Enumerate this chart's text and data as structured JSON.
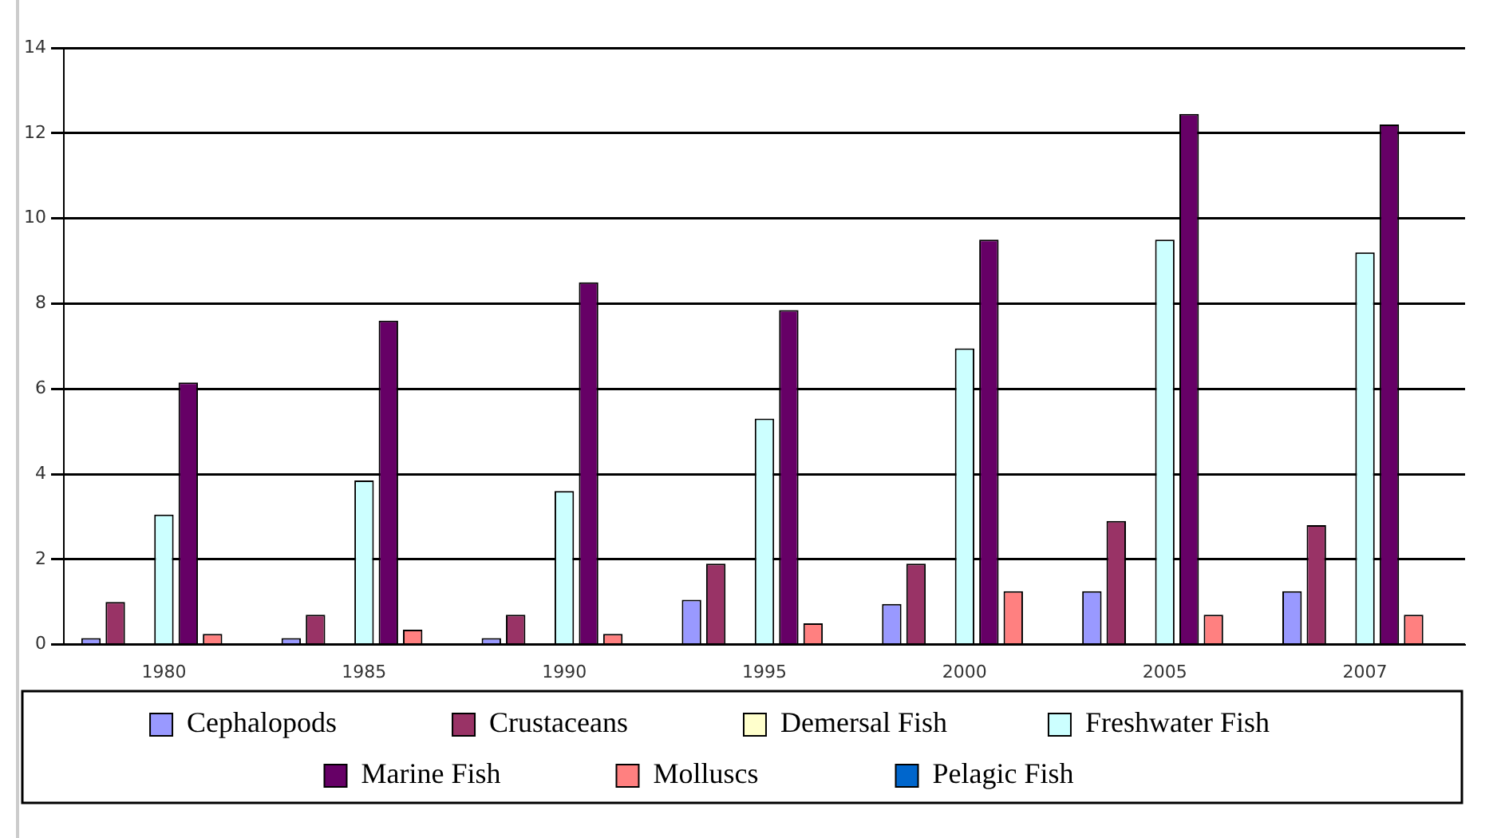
{
  "chart_data": {
    "type": "bar",
    "categories": [
      "1980",
      "1985",
      "1990",
      "1995",
      "2000",
      "2005",
      "2007"
    ],
    "series": [
      {
        "name": "Cephalopods",
        "color": "#9999ff",
        "values": [
          0.15,
          0.15,
          0.15,
          1.05,
          0.95,
          1.25,
          1.25
        ]
      },
      {
        "name": "Crustaceans",
        "color": "#993366",
        "values": [
          1.0,
          0.7,
          0.7,
          1.9,
          1.9,
          2.9,
          2.8
        ]
      },
      {
        "name": "Demersal Fish",
        "color": "#ffffcc",
        "values": [
          0,
          0,
          0,
          0,
          0,
          0,
          0
        ]
      },
      {
        "name": "Freshwater Fish",
        "color": "#ccffff",
        "values": [
          3.05,
          3.85,
          3.6,
          5.3,
          6.95,
          9.5,
          9.2
        ]
      },
      {
        "name": "Marine Fish",
        "color": "#660066",
        "values": [
          6.15,
          7.6,
          8.5,
          7.85,
          9.5,
          12.45,
          12.2
        ]
      },
      {
        "name": "Molluscs",
        "color": "#ff8080",
        "values": [
          0.25,
          0.35,
          0.25,
          0.5,
          1.25,
          0.7,
          0.7
        ]
      },
      {
        "name": "Pelagic Fish",
        "color": "#0066cc",
        "values": [
          0,
          0,
          0,
          0,
          null,
          null,
          null
        ]
      }
    ],
    "ylim": [
      0,
      14
    ],
    "yticks": [
      0,
      2,
      4,
      6,
      8,
      10,
      12,
      14
    ],
    "grid": "y",
    "legend": "bottom"
  }
}
